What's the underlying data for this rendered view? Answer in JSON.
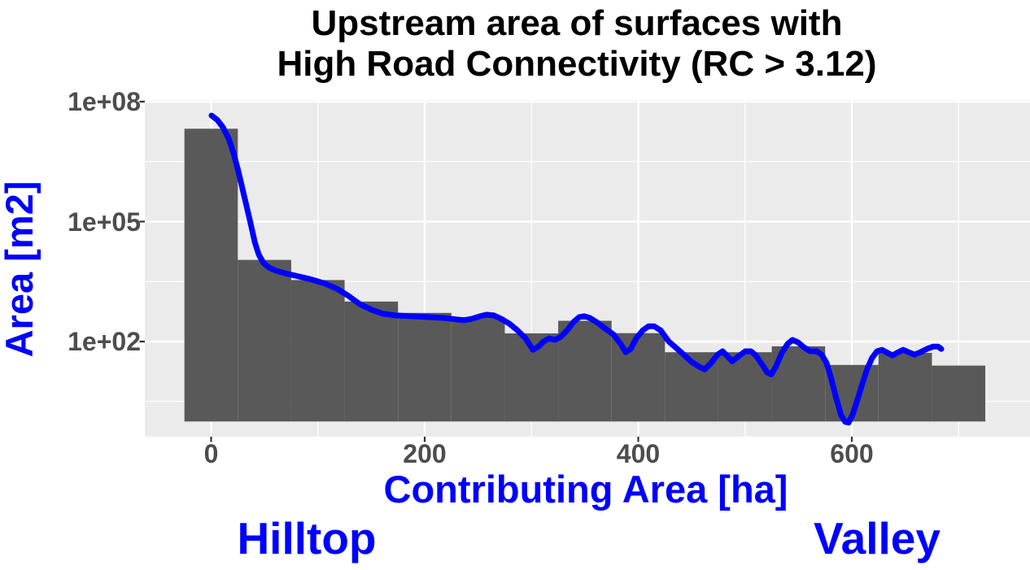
{
  "title": {
    "line1": "Upstream area of surfaces with",
    "line2": "High Road Connectivity (RC > 3.12)"
  },
  "annotations": {
    "left": "Hilltop",
    "right": "Valley"
  },
  "colors": {
    "title": "#000000",
    "axis_title": "#0000FF",
    "smooth_line": "#0000FF",
    "bars": "#595959",
    "panel_background": "#EBEBEB",
    "gridlines": "#FFFFFF",
    "tick_text": "#4D4D4D",
    "tick_mark": "#333333",
    "figure_background": "#FFFFFF"
  },
  "chart_data": {
    "type": "bar",
    "subtype": "histogram with smooth trend line, log10 y-axis",
    "title": "Upstream area of surfaces with High Road Connectivity (RC > 3.12)",
    "xlabel": "Contributing Area [ha]",
    "ylabel": "Area [m2]",
    "x_ticks": [
      {
        "label": "0",
        "value": 0
      },
      {
        "label": "200",
        "value": 200
      },
      {
        "label": "400",
        "value": 400
      },
      {
        "label": "600",
        "value": 600
      }
    ],
    "x_minor_ticks": [
      100,
      300,
      500,
      700
    ],
    "y_ticks": [
      {
        "label": "1e+08",
        "log10": 8
      },
      {
        "label": "1e+05",
        "log10": 5
      },
      {
        "label": "1e+02",
        "log10": 2
      }
    ],
    "y_minor_log10": [
      6.5,
      3.5,
      0.5
    ],
    "xlim_ha": [
      -62,
      767
    ],
    "ylim_m2": [
      0.4,
      110000000.0
    ],
    "grid": "white major and minor gridlines on grey panel",
    "legend": "none",
    "bin_width_ha": 50,
    "bar_baseline_m2": 1,
    "categories": [
      0,
      50,
      100,
      150,
      200,
      250,
      300,
      350,
      400,
      450,
      500,
      550,
      600,
      650,
      700
    ],
    "values": [
      21000000.0,
      11000.0,
      3450,
      1000,
      520,
      410,
      160,
      330,
      162,
      54,
      54,
      76,
      26,
      52,
      25
    ],
    "series": [
      {
        "name": "histogram of upstream area per contributing-area bin",
        "geom": "bar"
      },
      {
        "name": "smooth trend line",
        "geom": "line"
      }
    ],
    "smooth_line_points_ha_m2": [
      [
        0.4,
        45000000.0
      ],
      [
        5.7,
        35000000.0
      ],
      [
        11,
        23000000.0
      ],
      [
        16.4,
        12000000.0
      ],
      [
        21,
        5100000.0
      ],
      [
        25.5,
        1800000.0
      ],
      [
        29.3,
        670000.0
      ],
      [
        33.1,
        250000.0
      ],
      [
        37,
        89000.0
      ],
      [
        40.8,
        31000.0
      ],
      [
        44.6,
        15000.0
      ],
      [
        49.1,
        9200
      ],
      [
        54.5,
        7000
      ],
      [
        61.3,
        5800
      ],
      [
        70.5,
        5000
      ],
      [
        81.1,
        4300
      ],
      [
        93.3,
        3600
      ],
      [
        107,
        2800
      ],
      [
        117.7,
        2100
      ],
      [
        128.4,
        1400
      ],
      [
        139,
        870
      ],
      [
        149.7,
        630
      ],
      [
        160.4,
        500
      ],
      [
        172.6,
        450
      ],
      [
        187,
        430
      ],
      [
        202.3,
        410
      ],
      [
        217.5,
        390
      ],
      [
        228.9,
        360
      ],
      [
        236.6,
        340
      ],
      [
        244.2,
        370
      ],
      [
        251.8,
        430
      ],
      [
        257.9,
        470
      ],
      [
        264.8,
        450
      ],
      [
        271.6,
        370
      ],
      [
        279.2,
        280
      ],
      [
        286.9,
        190
      ],
      [
        294.5,
        120
      ],
      [
        301.3,
        62
      ],
      [
        306.7,
        75
      ],
      [
        311.2,
        100
      ],
      [
        316.6,
        120
      ],
      [
        321.9,
        110
      ],
      [
        327.2,
        130
      ],
      [
        333.3,
        190
      ],
      [
        339.4,
        310
      ],
      [
        344.8,
        410
      ],
      [
        349.3,
        430
      ],
      [
        354.7,
        390
      ],
      [
        361.5,
        300
      ],
      [
        369.1,
        210
      ],
      [
        376.8,
        150
      ],
      [
        383.6,
        87
      ],
      [
        388.2,
        54
      ],
      [
        392.8,
        65
      ],
      [
        398.1,
        120
      ],
      [
        404.2,
        190
      ],
      [
        409.5,
        240
      ],
      [
        414.9,
        240
      ],
      [
        421,
        190
      ],
      [
        428.6,
        100
      ],
      [
        438.5,
        59
      ],
      [
        449.9,
        31
      ],
      [
        457.5,
        23
      ],
      [
        462.1,
        20
      ],
      [
        468.2,
        29
      ],
      [
        474.3,
        47
      ],
      [
        478.9,
        57
      ],
      [
        483.4,
        43
      ],
      [
        488,
        32
      ],
      [
        494.1,
        43
      ],
      [
        500.2,
        57
      ],
      [
        505.5,
        57
      ],
      [
        510.1,
        45
      ],
      [
        515.4,
        28
      ],
      [
        520.8,
        17
      ],
      [
        524.6,
        15
      ],
      [
        529.1,
        24
      ],
      [
        534.5,
        52
      ],
      [
        539.8,
        87
      ],
      [
        544.4,
        110
      ],
      [
        549.7,
        95
      ],
      [
        555,
        72
      ],
      [
        561.1,
        57
      ],
      [
        567.2,
        57
      ],
      [
        571.8,
        47
      ],
      [
        576.4,
        29
      ],
      [
        581,
        11
      ],
      [
        585.5,
        3.7
      ],
      [
        590.1,
        1.4
      ],
      [
        593.9,
        0.98
      ],
      [
        597,
        0.94
      ],
      [
        600.8,
        1.5
      ],
      [
        605.3,
        3.5
      ],
      [
        610,
        9
      ],
      [
        614.5,
        21
      ],
      [
        619,
        39
      ],
      [
        623.6,
        57
      ],
      [
        628.2,
        62
      ],
      [
        633.5,
        52
      ],
      [
        638.1,
        45
      ],
      [
        643.4,
        54
      ],
      [
        648,
        62
      ],
      [
        653.3,
        54
      ],
      [
        658.7,
        47
      ],
      [
        664,
        54
      ],
      [
        670.1,
        65
      ],
      [
        676.2,
        75
      ],
      [
        680.8,
        75
      ],
      [
        683.8,
        65
      ]
    ]
  }
}
